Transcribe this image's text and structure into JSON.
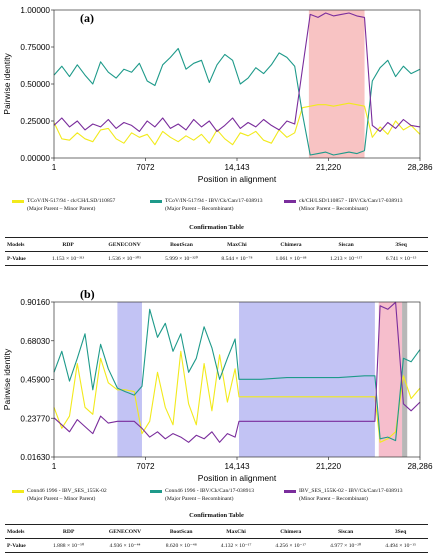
{
  "chart_data": [
    {
      "type": "line",
      "panel_label": "(a)",
      "xlabel": "Position in alignment",
      "ylabel": "Pairwise identity",
      "xlim": [
        1,
        28286
      ],
      "ylim": [
        0.0,
        1.0
      ],
      "x_ticks": [
        "1",
        "7072",
        "14,143",
        "21,220",
        "28,286"
      ],
      "y_ticks": [
        "0.00000",
        "0.25000",
        "0.50000",
        "0.75000",
        "1.00000"
      ],
      "shaded_regions": [
        {
          "start": 19700,
          "end": 24000,
          "color": "#f7b9b9"
        }
      ],
      "series": [
        {
          "color": "#f2ea1c",
          "legend": "TCoV/IN-517/94 - ck/CH/LSD/110857",
          "legend_sub": "(Major Parent – Minor Parent)",
          "x": [
            1,
            600,
            1200,
            1800,
            2400,
            3000,
            3600,
            4200,
            4800,
            5400,
            6000,
            6600,
            7200,
            7800,
            8400,
            9000,
            9600,
            10200,
            10800,
            11400,
            12000,
            12600,
            13200,
            13800,
            14400,
            15000,
            15600,
            16200,
            16800,
            17400,
            18000,
            18600,
            19200,
            19800,
            20400,
            21000,
            21600,
            22200,
            22800,
            23400,
            24000,
            24600,
            25200,
            25800,
            26400,
            27000,
            27600,
            28286
          ],
          "y": [
            0.24,
            0.13,
            0.12,
            0.17,
            0.13,
            0.11,
            0.19,
            0.2,
            0.13,
            0.1,
            0.17,
            0.14,
            0.16,
            0.09,
            0.18,
            0.14,
            0.11,
            0.15,
            0.12,
            0.16,
            0.1,
            0.19,
            0.13,
            0.09,
            0.17,
            0.15,
            0.18,
            0.12,
            0.1,
            0.19,
            0.14,
            0.17,
            0.34,
            0.35,
            0.36,
            0.36,
            0.35,
            0.36,
            0.37,
            0.36,
            0.35,
            0.14,
            0.21,
            0.16,
            0.25,
            0.19,
            0.22,
            0.16
          ]
        },
        {
          "color": "#1e9a8a",
          "legend": "TCoV/IN-517/94 - IBV/Ck/Can/17-038913",
          "legend_sub": "(Major Parent – Recombinant)",
          "x": [
            1,
            600,
            1200,
            1800,
            2400,
            3000,
            3600,
            4200,
            4800,
            5400,
            6000,
            6600,
            7200,
            7800,
            8400,
            9000,
            9600,
            10200,
            10800,
            11400,
            12000,
            12600,
            13200,
            13800,
            14400,
            15000,
            15600,
            16200,
            16800,
            17400,
            18000,
            18600,
            19200,
            19800,
            20400,
            21000,
            21600,
            22200,
            22800,
            23400,
            24000,
            24600,
            25200,
            25800,
            26400,
            27000,
            27600,
            28286
          ],
          "y": [
            0.56,
            0.62,
            0.55,
            0.63,
            0.56,
            0.5,
            0.65,
            0.58,
            0.54,
            0.6,
            0.58,
            0.64,
            0.52,
            0.49,
            0.63,
            0.68,
            0.74,
            0.6,
            0.64,
            0.66,
            0.51,
            0.63,
            0.7,
            0.66,
            0.5,
            0.54,
            0.61,
            0.57,
            0.63,
            0.71,
            0.68,
            0.62,
            0.3,
            0.02,
            0.03,
            0.04,
            0.02,
            0.03,
            0.04,
            0.03,
            0.05,
            0.52,
            0.61,
            0.66,
            0.55,
            0.62,
            0.57,
            0.6
          ]
        },
        {
          "color": "#7a2d9c",
          "legend": "ck/CH/LSD/110857 - IBV/Ck/Can/17-038913",
          "legend_sub": "(Minor Parent – Recombinant)",
          "x": [
            1,
            600,
            1200,
            1800,
            2400,
            3000,
            3600,
            4200,
            4800,
            5400,
            6000,
            6600,
            7200,
            7800,
            8400,
            9000,
            9600,
            10200,
            10800,
            11400,
            12000,
            12600,
            13200,
            13800,
            14400,
            15000,
            15600,
            16200,
            16800,
            17400,
            18000,
            18600,
            19200,
            19800,
            20400,
            21000,
            21600,
            22200,
            22800,
            23400,
            24000,
            24600,
            25200,
            25800,
            26400,
            27000,
            27600,
            28286
          ],
          "y": [
            0.22,
            0.27,
            0.21,
            0.25,
            0.19,
            0.23,
            0.21,
            0.26,
            0.2,
            0.24,
            0.22,
            0.18,
            0.25,
            0.21,
            0.27,
            0.2,
            0.23,
            0.19,
            0.26,
            0.21,
            0.25,
            0.18,
            0.22,
            0.27,
            0.2,
            0.24,
            0.21,
            0.26,
            0.22,
            0.19,
            0.25,
            0.23,
            0.6,
            0.97,
            0.95,
            0.98,
            0.96,
            0.97,
            0.98,
            0.96,
            0.95,
            0.22,
            0.18,
            0.24,
            0.2,
            0.26,
            0.22,
            0.21
          ]
        }
      ],
      "table": {
        "title": "Confirmation Table",
        "headers": [
          "Models",
          "RDP",
          "GENECONV",
          "BootScan",
          "MaxChi",
          "Chimera",
          "Siscan",
          "3Seq"
        ],
        "row_label": "P-Value",
        "values": [
          "1.153 × 10⁻³¹³",
          "1.536 × 10⁻³⁰⁵",
          "5.999 × 10⁻³²⁰",
          "8.544 × 10⁻⁷⁸",
          "1.061 × 10⁻⁶⁸",
          "1.213 × 10⁻¹¹⁷",
          "6.741 × 10⁻¹⁵"
        ]
      }
    },
    {
      "type": "line",
      "panel_label": "(b)",
      "xlabel": "Position in alignment",
      "ylabel": "Pairwise identity",
      "xlim": [
        1,
        28286
      ],
      "ylim": [
        0.0163,
        0.9016
      ],
      "x_ticks": [
        "1",
        "7072",
        "14,143",
        "21,220",
        "28,286"
      ],
      "y_ticks": [
        "0.01630",
        "0.23770",
        "0.45900",
        "0.68030",
        "0.90160"
      ],
      "shaded_regions": [
        {
          "start": 4900,
          "end": 6800,
          "color": "#b7b9f2"
        },
        {
          "start": 14300,
          "end": 24800,
          "color": "#b7b9f2"
        },
        {
          "start": 25100,
          "end": 26900,
          "color": "#f5b3c3"
        },
        {
          "start": 26900,
          "end": 27300,
          "color": "#aaaaaa"
        }
      ],
      "series": [
        {
          "color": "#f2ea1c",
          "legend": "Conn46 1996 - IBV_SES_155K-02",
          "legend_sub": "(Major Parent – Minor Parent)",
          "x": [
            1,
            600,
            1200,
            1800,
            2400,
            3000,
            3600,
            4200,
            4900,
            5500,
            6200,
            6800,
            7400,
            8000,
            8600,
            9200,
            9800,
            10400,
            11000,
            11600,
            12200,
            12800,
            13400,
            14000,
            14300,
            16000,
            18000,
            20000,
            22000,
            24000,
            24800,
            25200,
            25800,
            26400,
            27000,
            27600,
            28286
          ],
          "y": [
            0.3,
            0.18,
            0.25,
            0.55,
            0.3,
            0.26,
            0.58,
            0.44,
            0.4,
            0.4,
            0.39,
            0.15,
            0.22,
            0.5,
            0.3,
            0.2,
            0.62,
            0.32,
            0.2,
            0.55,
            0.28,
            0.6,
            0.33,
            0.52,
            0.36,
            0.36,
            0.36,
            0.36,
            0.36,
            0.36,
            0.36,
            0.1,
            0.12,
            0.16,
            0.48,
            0.35,
            0.41
          ]
        },
        {
          "color": "#1e9a8a",
          "legend": "Conn46 1996 - IBV/Ck/Can/17-038913",
          "legend_sub": "(Major Parent – Recombinant)",
          "x": [
            1,
            600,
            1200,
            1800,
            2400,
            3000,
            3600,
            4200,
            4900,
            5500,
            6200,
            6800,
            7400,
            8000,
            8600,
            9200,
            9800,
            10400,
            11000,
            11600,
            12200,
            12800,
            13400,
            14000,
            14300,
            16000,
            18000,
            20000,
            22000,
            24000,
            24800,
            25200,
            25800,
            26400,
            27000,
            27600,
            28286
          ],
          "y": [
            0.5,
            0.62,
            0.45,
            0.58,
            0.72,
            0.4,
            0.66,
            0.52,
            0.41,
            0.39,
            0.37,
            0.42,
            0.86,
            0.7,
            0.78,
            0.62,
            0.72,
            0.5,
            0.58,
            0.76,
            0.64,
            0.46,
            0.58,
            0.69,
            0.46,
            0.46,
            0.47,
            0.47,
            0.47,
            0.48,
            0.48,
            0.12,
            0.13,
            0.11,
            0.58,
            0.56,
            0.63
          ]
        },
        {
          "color": "#7a2d9c",
          "legend": "IBV_SES_155K-02 - IBV/Ck/Can/17-038913",
          "legend_sub": "(Minor Parent – Recombinant)",
          "x": [
            1,
            600,
            1200,
            1800,
            2400,
            3000,
            3600,
            4200,
            4900,
            5500,
            6200,
            6800,
            7400,
            8000,
            8600,
            9200,
            9800,
            10400,
            11000,
            11600,
            12200,
            12800,
            13400,
            14000,
            14300,
            16000,
            18000,
            20000,
            22000,
            24000,
            24800,
            25200,
            25800,
            26400,
            27000,
            27600,
            28286
          ],
          "y": [
            0.24,
            0.2,
            0.16,
            0.23,
            0.19,
            0.15,
            0.25,
            0.21,
            0.22,
            0.22,
            0.22,
            0.18,
            0.13,
            0.16,
            0.12,
            0.15,
            0.13,
            0.1,
            0.14,
            0.12,
            0.16,
            0.1,
            0.15,
            0.13,
            0.22,
            0.22,
            0.22,
            0.22,
            0.22,
            0.22,
            0.22,
            0.88,
            0.86,
            0.9,
            0.32,
            0.28,
            0.33
          ]
        }
      ],
      "table": {
        "title": "Confirmation Table",
        "headers": [
          "Models",
          "RDP",
          "GENECONV",
          "BootScan",
          "MaxChi",
          "Chimera",
          "Siscan",
          "3Seq"
        ],
        "row_label": "P-Value",
        "values": [
          "1.888 × 10⁻⁵⁰",
          "4.936 × 10⁻⁴⁴",
          "8.620 × 10⁻⁴⁸",
          "4.132 × 10⁻¹⁷",
          "4.256 × 10⁻¹⁷",
          "4.977 × 10⁻²⁰",
          "4.494 × 10⁻¹⁵"
        ]
      }
    }
  ]
}
